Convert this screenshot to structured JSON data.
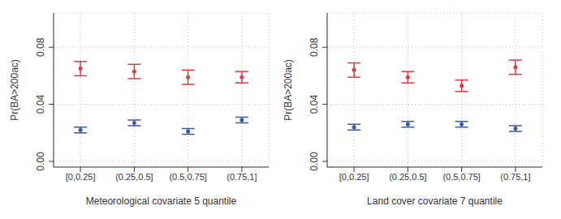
{
  "chart_data": [
    {
      "type": "scatter",
      "x_label": "Meteorological covariate 5 quantile",
      "y_label": "Pr(BA>200ac)",
      "categories": [
        "[0,0.25]",
        "(0.25,0.5]",
        "(0.5,0.75]",
        "(0.75,1]"
      ],
      "ylim": [
        -0.004,
        0.104
      ],
      "yticks": [
        {
          "value": 0,
          "label": "0.00"
        },
        {
          "value": 0.04,
          "label": "0.04"
        },
        {
          "value": 0.08,
          "label": "0.08"
        }
      ],
      "grid": true,
      "marker": "circle",
      "series": [
        {
          "color": "#e0393e",
          "values": [
            0.065,
            0.063,
            0.059,
            0.059
          ],
          "errors": [
            0.005,
            0.005,
            0.005,
            0.004
          ]
        },
        {
          "color": "#3a5ba8",
          "values": [
            0.022,
            0.027,
            0.021,
            0.029
          ],
          "errors": [
            0.002,
            0.002,
            0.002,
            0.002
          ]
        }
      ]
    },
    {
      "type": "scatter",
      "x_label": "Land cover covariate 7 quantile",
      "y_label": "Pr(BA>200ac)",
      "categories": [
        "[0,0.25]",
        "(0.25,0.5]",
        "(0.5,0.75]",
        "(0.75,1]"
      ],
      "ylim": [
        -0.004,
        0.104
      ],
      "yticks": [
        {
          "value": 0,
          "label": "0.00"
        },
        {
          "value": 0.04,
          "label": "0.04"
        },
        {
          "value": 0.08,
          "label": "0.08"
        }
      ],
      "grid": true,
      "marker": "circle",
      "series": [
        {
          "color": "#e0393e",
          "values": [
            0.064,
            0.059,
            0.053,
            0.066
          ],
          "errors": [
            0.005,
            0.004,
            0.004,
            0.005
          ]
        },
        {
          "color": "#3a5ba8",
          "values": [
            0.024,
            0.026,
            0.026,
            0.023
          ],
          "errors": [
            0.002,
            0.002,
            0.002,
            0.002
          ]
        }
      ]
    }
  ]
}
